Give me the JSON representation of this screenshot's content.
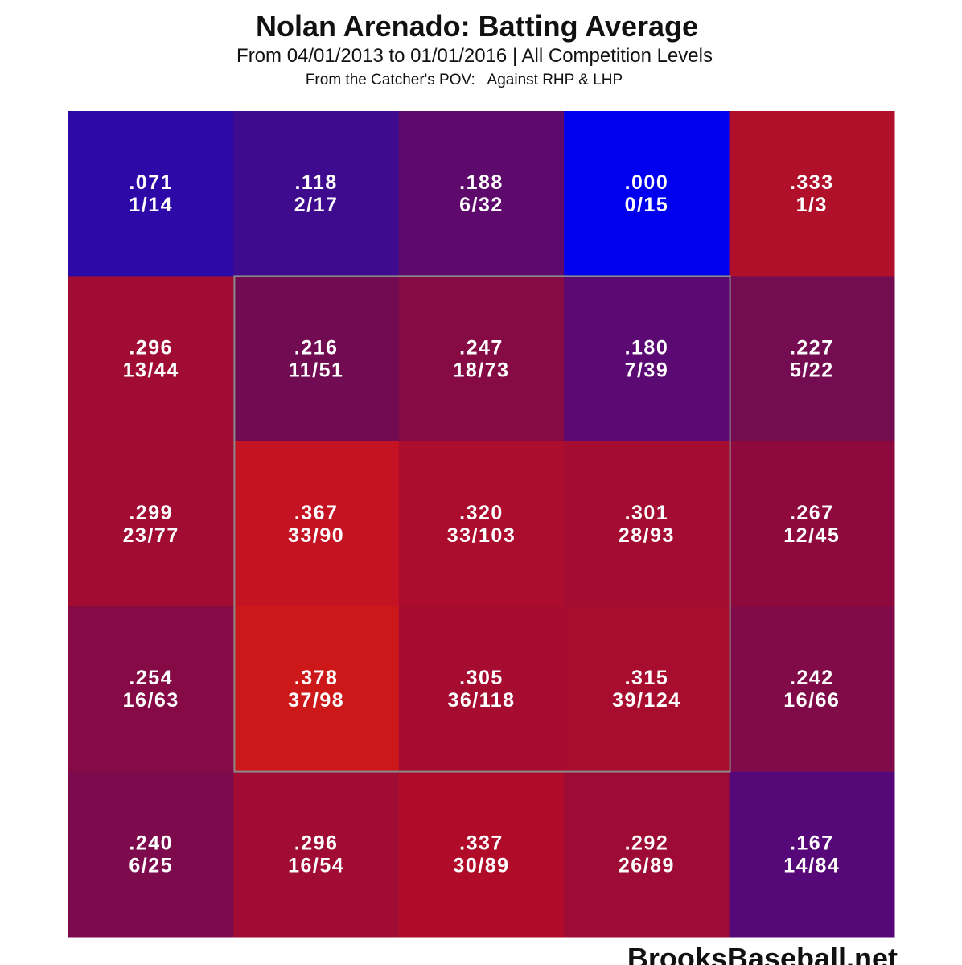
{
  "chart_data": {
    "type": "heatmap",
    "title": "Nolan Arenado: Batting Average",
    "subtitle": "From 04/01/2013 to 01/01/2016 | All Competition Levels",
    "note": "From the Catcher's POV:   Against RHP & LHP",
    "source": "BrooksBaseball.net",
    "values": [
      [
        0.071,
        0.118,
        0.188,
        0.0,
        0.333
      ],
      [
        0.296,
        0.216,
        0.247,
        0.18,
        0.227
      ],
      [
        0.299,
        0.367,
        0.32,
        0.301,
        0.267
      ],
      [
        0.254,
        0.378,
        0.305,
        0.315,
        0.242
      ],
      [
        0.24,
        0.296,
        0.337,
        0.292,
        0.167
      ]
    ],
    "value_labels": [
      [
        ".071",
        ".118",
        ".188",
        ".000",
        ".333"
      ],
      [
        ".296",
        ".216",
        ".247",
        ".180",
        ".227"
      ],
      [
        ".299",
        ".367",
        ".320",
        ".301",
        ".267"
      ],
      [
        ".254",
        ".378",
        ".305",
        ".315",
        ".242"
      ],
      [
        ".240",
        ".296",
        ".337",
        ".292",
        ".167"
      ]
    ],
    "counts": [
      [
        "1/14",
        "2/17",
        "6/32",
        "0/15",
        "1/3"
      ],
      [
        "13/44",
        "11/51",
        "18/73",
        "7/39",
        "5/22"
      ],
      [
        "23/77",
        "33/90",
        "33/103",
        "28/93",
        "12/45"
      ],
      [
        "16/63",
        "37/98",
        "36/118",
        "39/124",
        "16/66"
      ],
      [
        "6/25",
        "16/54",
        "30/89",
        "26/89",
        "14/84"
      ]
    ],
    "colors": [
      [
        "#2d0aa8",
        "#3e0a8e",
        "#5e0a6c",
        "#0000ee",
        "#b0102a"
      ],
      [
        "#a10c34",
        "#720c52",
        "#860a44",
        "#5a0a72",
        "#740c52"
      ],
      [
        "#a20c32",
        "#c41424",
        "#ac0c2e",
        "#a40c32",
        "#8e0a3e"
      ],
      [
        "#850a46",
        "#cc1818",
        "#a50c30",
        "#a80c2e",
        "#810a48"
      ],
      [
        "#7c0a4c",
        "#a00c34",
        "#b00c2a",
        "#9e0c36",
        "#560878"
      ]
    ]
  }
}
